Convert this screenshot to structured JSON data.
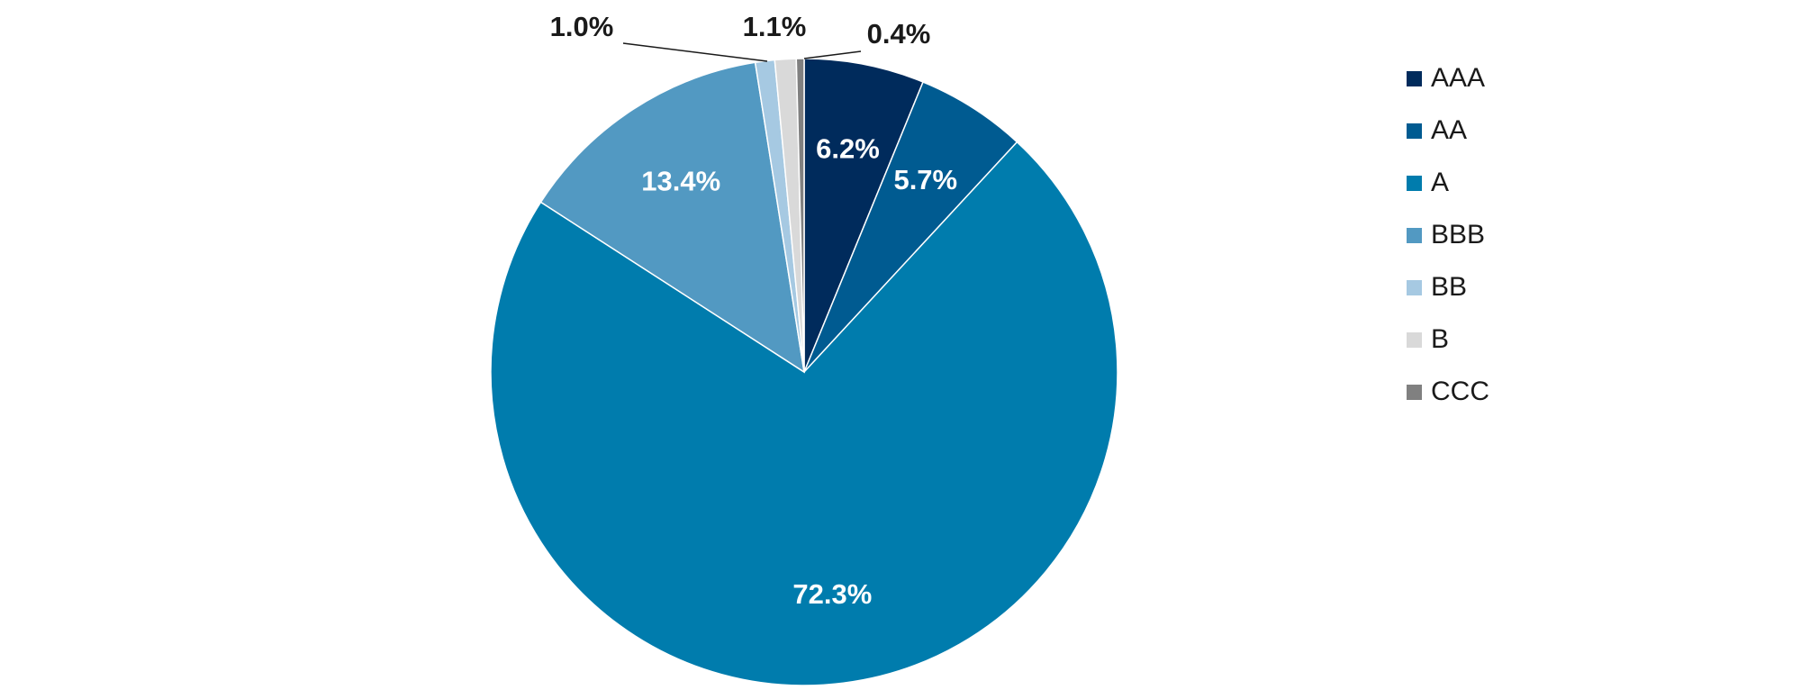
{
  "chart_data": {
    "type": "pie",
    "title": "",
    "slices": [
      {
        "label": "AAA",
        "value": 6.2,
        "display": "6.2%",
        "color": "#002b5c",
        "label_inside": true
      },
      {
        "label": "AA",
        "value": 5.7,
        "display": "5.7%",
        "color": "#005b91",
        "label_inside": true
      },
      {
        "label": "A",
        "value": 72.3,
        "display": "72.3%",
        "color": "#007cad",
        "label_inside": true
      },
      {
        "label": "BBB",
        "value": 13.4,
        "display": "13.4%",
        "color": "#5299c2",
        "label_inside": true
      },
      {
        "label": "BB",
        "value": 1.0,
        "display": "1.0%",
        "color": "#a6c9e2",
        "label_inside": false
      },
      {
        "label": "B",
        "value": 1.1,
        "display": "1.1%",
        "color": "#d9d9d9",
        "label_inside": false
      },
      {
        "label": "CCC",
        "value": 0.4,
        "display": "0.4%",
        "color": "#808080",
        "label_inside": false
      }
    ],
    "start_angle": "12 o'clock",
    "direction": "clockwise",
    "legend_position": "right"
  }
}
